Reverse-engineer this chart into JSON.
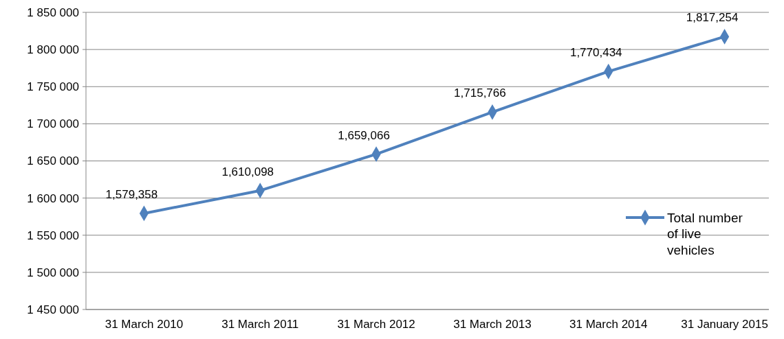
{
  "chart_data": {
    "type": "line",
    "categories": [
      "31 March 2010",
      "31 March 2011",
      "31 March 2012",
      "31 March 2013",
      "31 March 2014",
      "31 January 2015"
    ],
    "series": [
      {
        "name": "Total number of live vehicles",
        "color": "#4f81bd",
        "values": [
          1579358,
          1610098,
          1659066,
          1715766,
          1770434,
          1817254
        ],
        "value_labels": [
          "1,579,358",
          "1,610,098",
          "1,659,066",
          "1,715,766",
          "1,770,434",
          "1,817,254"
        ]
      }
    ],
    "ylim": [
      1450000,
      1850000
    ],
    "yticks": [
      {
        "value": 1450000,
        "label": "1 450 000"
      },
      {
        "value": 1500000,
        "label": "1 500 000"
      },
      {
        "value": 1550000,
        "label": "1 550 000"
      },
      {
        "value": 1600000,
        "label": "1 600 000"
      },
      {
        "value": 1650000,
        "label": "1 650 000"
      },
      {
        "value": 1700000,
        "label": "1 700 000"
      },
      {
        "value": 1750000,
        "label": "1 750 000"
      },
      {
        "value": 1800000,
        "label": "1 800 000"
      },
      {
        "value": 1850000,
        "label": "1 850 000"
      }
    ],
    "grid": "y",
    "legend": "right",
    "marker": "diamond",
    "line_style": "solid"
  }
}
